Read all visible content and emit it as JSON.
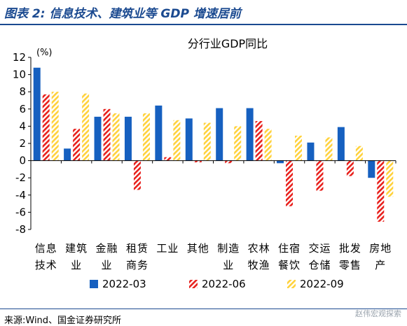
{
  "figure_title": "图表 2:  信息技术、建筑业等 GDP 增速居前",
  "source": "来源:Wind、国金证券研究所",
  "watermark": "赵伟宏观探索",
  "colors": {
    "2022-03": "#1660c0",
    "2022-06": "#e8201c",
    "2022-09": "#ffd23c",
    "title": "#1b4a90"
  },
  "chart_data": {
    "type": "bar",
    "title": "分行业GDP同比",
    "ylabel": "(%)",
    "ylim": [
      -8,
      12
    ],
    "yticks": [
      -8,
      -6,
      -4,
      -2,
      0,
      2,
      4,
      6,
      8,
      10,
      12
    ],
    "grid": false,
    "legend_position": "bottom",
    "categories": [
      [
        "信息",
        "技术"
      ],
      [
        "建筑",
        "业"
      ],
      [
        "金融",
        "业"
      ],
      [
        "租赁",
        "商务"
      ],
      [
        "工业"
      ],
      [
        "其他"
      ],
      [
        "制造",
        "业"
      ],
      [
        "农林",
        "牧渔"
      ],
      [
        "住宿",
        "餐饮"
      ],
      [
        "交运",
        "仓储"
      ],
      [
        "批发",
        "零售"
      ],
      [
        "房地",
        "产"
      ]
    ],
    "series": [
      {
        "name": "2022-03",
        "style": "solid",
        "values": [
          10.8,
          1.4,
          5.1,
          5.1,
          6.4,
          4.9,
          6.1,
          6.1,
          -0.3,
          2.1,
          3.9,
          -2.0
        ]
      },
      {
        "name": "2022-06",
        "style": "red-hatch",
        "values": [
          7.7,
          3.7,
          6.0,
          -3.4,
          0.4,
          -0.2,
          -0.3,
          4.6,
          -5.3,
          -3.5,
          -1.8,
          -7.1
        ]
      },
      {
        "name": "2022-09",
        "style": "yellow-hatch",
        "values": [
          8.0,
          7.8,
          5.5,
          5.5,
          4.7,
          4.4,
          4.0,
          3.7,
          2.9,
          2.7,
          1.7,
          -4.2
        ]
      }
    ]
  }
}
